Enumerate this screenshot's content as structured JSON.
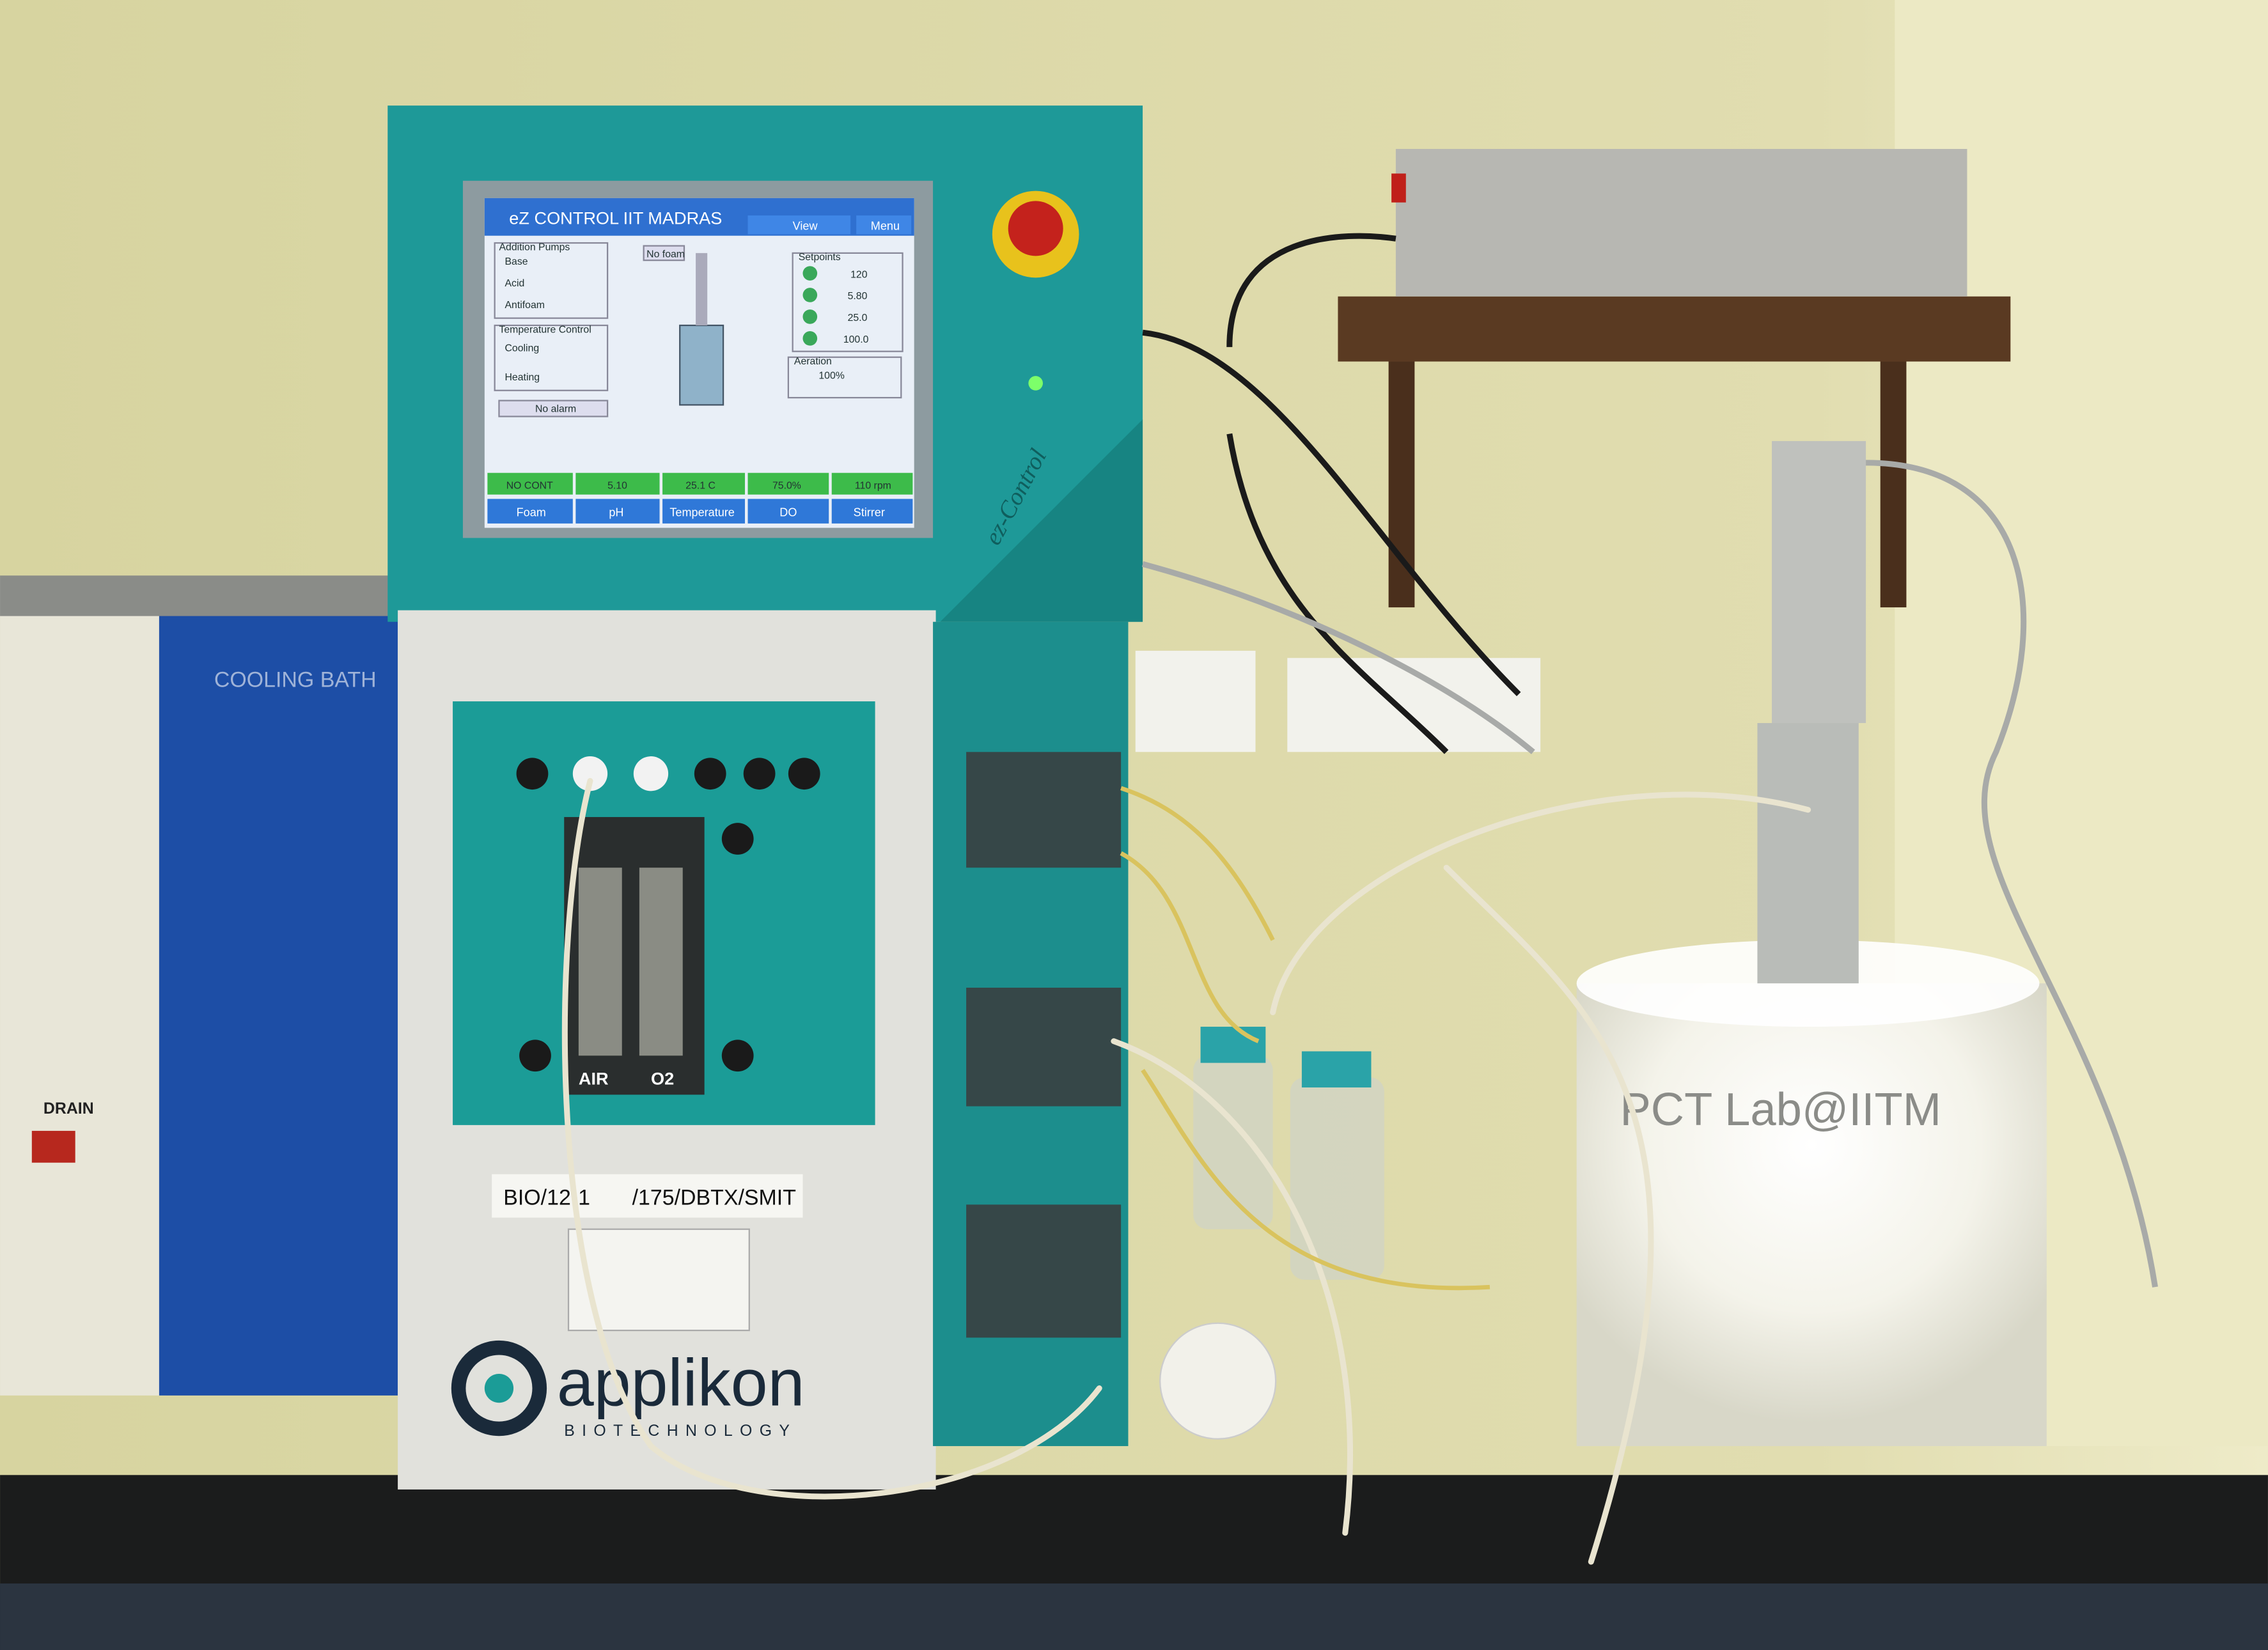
{
  "screen": {
    "title": "eZ CONTROL IIT MADRAS",
    "buttons": [
      "View",
      "Menu"
    ],
    "addition_pumps": {
      "heading": "Addition Pumps",
      "pumps": [
        "Base",
        "Acid",
        "Antifoam"
      ]
    },
    "temperature_control": {
      "heading": "Temperature Control",
      "modes": [
        "Cooling",
        "Heating"
      ]
    },
    "alarm": "No alarm",
    "foam_status": "No foam",
    "setpoints": {
      "heading": "Setpoints",
      "values": [
        "120",
        "5.80",
        "25.0",
        "100.0"
      ]
    },
    "aeration": {
      "heading": "Aeration",
      "value": "100%"
    },
    "status_bar": [
      "NO CONT",
      "5.10",
      "25.1 C",
      "75.0%",
      "110 rpm"
    ],
    "tabs": [
      "Foam",
      "pH",
      "Temperature",
      "DO",
      "Stirrer"
    ]
  },
  "controller_brand": "ez-Control",
  "cooling_bath": "COOLING BATH",
  "drain": "DRAIN",
  "flow_meters": [
    "AIR",
    "O2"
  ],
  "asset_label": [
    "BIO/12-1",
    "/175/DBTX/SMIT"
  ],
  "brand": {
    "name": "applikon",
    "tagline": "BIOTECHNOLOGY"
  },
  "watermark": "PCT Lab@IITM"
}
